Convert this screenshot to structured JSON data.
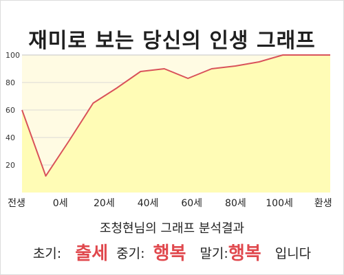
{
  "title": "재미로 보는 당신의 인생 그래프",
  "subtitle": "조청현님의 그래프 분석결과",
  "summary": {
    "early_label": "초기:",
    "early_value": "출세",
    "mid_label": "중기:",
    "mid_value": "행복",
    "late_label": "말기:",
    "late_value": "행복",
    "ending": "입니다"
  },
  "colors": {
    "line": "#d9525a",
    "fill": "#fffcb6",
    "plot_bg": "#fffbe3",
    "grid": "#cfcfcf",
    "highlight": "#e0484d"
  },
  "chart_data": {
    "type": "area",
    "title": "재미로 보는 당신의 인생 그래프",
    "x_tick_labels": [
      "전생",
      "0세",
      "20세",
      "40세",
      "60세",
      "80세",
      "100세",
      "환생"
    ],
    "y_ticks": [
      20,
      40,
      60,
      80,
      100
    ],
    "ylim": [
      0,
      100
    ],
    "grid": true,
    "series": [
      {
        "x": [
          "전생",
          "0세",
          "10세",
          "20세",
          "30세",
          "40세",
          "50세",
          "60세",
          "70세",
          "80세",
          "90세",
          "100세",
          "110세",
          "환생"
        ],
        "values": [
          60,
          12,
          38,
          65,
          76,
          88,
          90,
          83,
          90,
          92,
          95,
          100,
          100,
          100
        ]
      }
    ]
  }
}
